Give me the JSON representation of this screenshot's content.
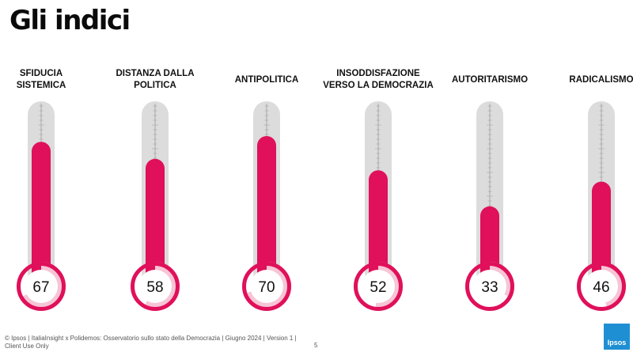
{
  "page": {
    "title": "Gli indici",
    "footer_line1": "© Ipsos | ItaliaInsight x Polidemos: Osservatorio sullo stato della Democrazia | Giugno 2024 | Version 1 |",
    "footer_line2": "Client Use Only",
    "page_number": "5",
    "logo_text": "Ipsos"
  },
  "colors": {
    "fill": "#e0105a",
    "tube": "#dcdcdc",
    "bulb_light": "#f6c5d6",
    "text": "#111111"
  },
  "chart_data": {
    "type": "bar",
    "title": "Gli indici",
    "ylim": [
      0,
      100
    ],
    "categories": [
      [
        "SFIDUCIA",
        "SISTEMICA"
      ],
      [
        "DISTANZA DALLA",
        "POLITICA"
      ],
      [
        "ANTIPOLITICA"
      ],
      [
        "INSODDISFAZIONE",
        "VERSO LA DEMOCRAZIA"
      ],
      [
        "AUTORITARISMO"
      ],
      [
        "RADICALISMO"
      ]
    ],
    "values": [
      67,
      58,
      70,
      52,
      33,
      46
    ]
  }
}
